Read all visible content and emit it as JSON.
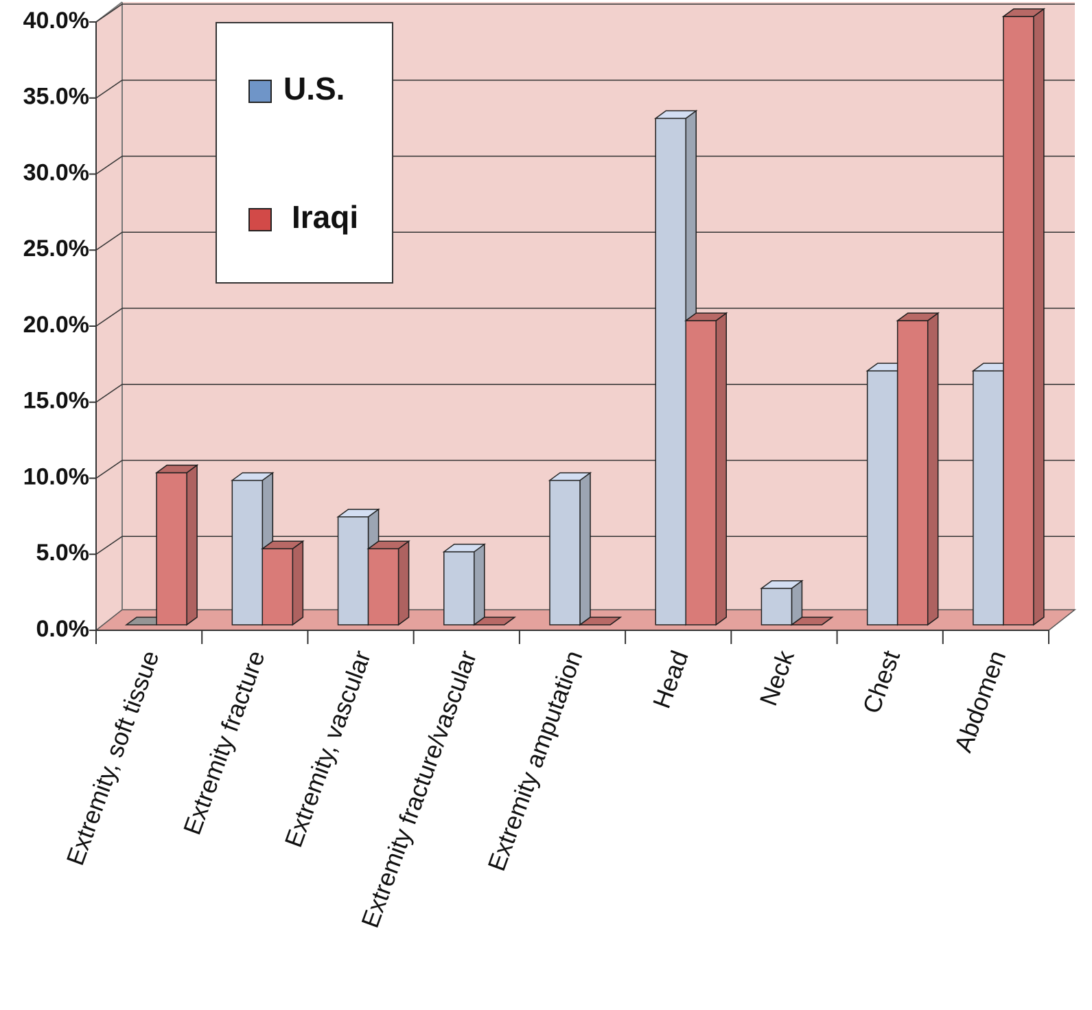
{
  "chart_data": {
    "type": "bar3d",
    "categories": [
      "Extremity, soft tissue",
      "Extremity fracture",
      "Extremity, vascular",
      "Extremity fracture/vascular",
      "Extremity amputation",
      "Head",
      "Neck",
      "Chest",
      "Abdomen"
    ],
    "series": [
      {
        "name": "U.S.",
        "color": "#c3cee0",
        "values": [
          0,
          9.5,
          7.1,
          4.8,
          9.5,
          33.3,
          2.4,
          16.7,
          16.7
        ]
      },
      {
        "name": "Iraqi",
        "color": "#d97b78",
        "values": [
          10,
          5,
          5,
          0,
          0,
          20,
          0,
          20,
          40
        ]
      }
    ],
    "ylim": [
      0,
      40
    ],
    "yticks": [
      {
        "value": 0,
        "label": "0.0%"
      },
      {
        "value": 5,
        "label": "5.0%"
      },
      {
        "value": 10,
        "label": "10.0%"
      },
      {
        "value": 15,
        "label": "15.0%"
      },
      {
        "value": 20,
        "label": "20.0%"
      },
      {
        "value": 25,
        "label": "25.0%"
      },
      {
        "value": 30,
        "label": "30.0%"
      },
      {
        "value": 35,
        "label": "35.0%"
      },
      {
        "value": 40,
        "label": "40.0%"
      }
    ],
    "grid": true
  }
}
